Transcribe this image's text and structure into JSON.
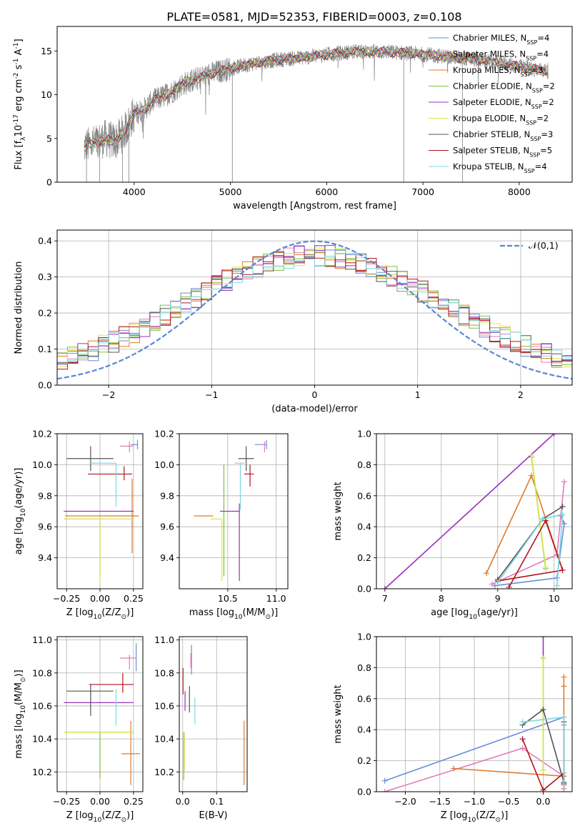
{
  "figure": {
    "title": "PLATE=0581, MJD=52353, FIBERID=0003, z=0.108"
  },
  "series_colors": {
    "Chabrier MILES": "#6a8fd8",
    "Salpeter MILES": "#e07db6",
    "Kroupa MILES": "#e07a2a",
    "Chabrier ELODIE": "#7fbf3f",
    "Salpeter ELODIE": "#9b2fbf",
    "Kroupa ELODIE": "#d8e84c",
    "Chabrier STELIB": "#555555",
    "Salpeter STELIB": "#b3141e",
    "Kroupa STELIB": "#7ad8e0"
  },
  "chart_data": [
    {
      "id": "spectrum",
      "type": "line",
      "title": "PLATE=0581, MJD=52353, FIBERID=0003, z=0.108",
      "xlabel": "wavelength [Angstrom, rest frame]",
      "ylabel": "Flux [f$_\\lambda$10$^{-17}$ erg cm$^{-2}$ s$^{-1}$ A$^{-1}$]",
      "xlim": [
        3200,
        8550
      ],
      "ylim": [
        0,
        17.8
      ],
      "xticks": [
        4000,
        5000,
        6000,
        7000,
        8000
      ],
      "yticks": [
        0,
        5,
        10,
        15
      ],
      "grid": false,
      "legend_position": "top-right",
      "legend": [
        {
          "label": "Chabrier MILES, N$_{SSP}$=4",
          "color": "#6a8fd8"
        },
        {
          "label": "Salpeter MILES, N$_{SSP}$=4",
          "color": "#e07db6"
        },
        {
          "label": "Kroupa MILES, N$_{SSP}$=3",
          "color": "#e07a2a"
        },
        {
          "label": "Chabrier ELODIE, N$_{SSP}$=2",
          "color": "#7fbf3f"
        },
        {
          "label": "Salpeter ELODIE, N$_{SSP}$=2",
          "color": "#9b2fbf"
        },
        {
          "label": "Kroupa ELODIE, N$_{SSP}$=2",
          "color": "#d8e84c"
        },
        {
          "label": "Chabrier STELIB, N$_{SSP}$=3",
          "color": "#555555"
        },
        {
          "label": "Salpeter STELIB, N$_{SSP}$=5",
          "color": "#b3141e"
        },
        {
          "label": "Kroupa STELIB, N$_{SSP}$=4",
          "color": "#7ad8e0"
        }
      ],
      "observed_color": "#808080",
      "continuum": {
        "x": [
          3480,
          3600,
          3700,
          3800,
          3900,
          4000,
          4100,
          4200,
          4300,
          4400,
          4500,
          4600,
          4800,
          5000,
          5200,
          5500,
          5800,
          6000,
          6300,
          6600,
          6900,
          7200,
          7500,
          7800,
          8100,
          8300
        ],
        "y": [
          4.0,
          4.5,
          5.0,
          4.6,
          5.8,
          7.8,
          8.3,
          9.3,
          9.8,
          10.4,
          11.2,
          11.6,
          12.4,
          13.0,
          13.5,
          14.0,
          14.3,
          14.6,
          14.9,
          14.9,
          14.7,
          14.4,
          14.1,
          13.6,
          13.0,
          12.7
        ]
      },
      "drop_lines_x": [
        3505,
        3640,
        3880,
        3945,
        5020,
        6800,
        7410
      ]
    },
    {
      "id": "residuals",
      "type": "histogram",
      "xlabel": "(data-model)/error",
      "ylabel": "Normed distribution",
      "xlim": [
        -2.5,
        2.5
      ],
      "ylim": [
        0,
        0.43
      ],
      "xticks": [
        -2,
        -1,
        0,
        1,
        2
      ],
      "yticks": [
        0.0,
        0.1,
        0.2,
        0.3,
        0.4
      ],
      "grid": true,
      "legend_position": "top-right",
      "reference_curve": {
        "label": "$\\mathcal{N}(0,1)$",
        "color": "#5b86d6",
        "mean": 0,
        "sigma": 1,
        "style": "dashed"
      },
      "bin_width": 0.1,
      "bin_left_edges_from": -2.5
    },
    {
      "id": "age-vs-Z",
      "type": "scatter",
      "xlabel": "Z [log$_{10}$(Z/Z$_\\odot$)]",
      "ylabel": "age  [log$_{10}$(age/yr)]",
      "xlim": [
        -0.32,
        0.32
      ],
      "ylim": [
        9.2,
        10.2
      ],
      "xticks": [
        -0.25,
        0.0,
        0.25
      ],
      "yticks": [
        9.4,
        9.6,
        9.8,
        10.0,
        10.2
      ],
      "grid": true,
      "points": [
        {
          "series": "Chabrier MILES",
          "x": 0.28,
          "y": 10.13,
          "xerr": [
            0.05,
            0.0
          ],
          "yerr": [
            0.03,
            0.03
          ]
        },
        {
          "series": "Salpeter MILES",
          "x": 0.22,
          "y": 10.12,
          "xerr": [
            0.07,
            0.03
          ],
          "yerr": [
            0.04,
            0.03
          ]
        },
        {
          "series": "Kroupa MILES",
          "x": 0.24,
          "y": 9.67,
          "xerr": [
            0.5,
            0.05
          ],
          "yerr": [
            0.24,
            0.24
          ]
        },
        {
          "series": "Chabrier ELODIE",
          "x": 0.0,
          "y": 9.65,
          "xerr": [
            0.27,
            0.0
          ],
          "yerr": [
            0.37,
            0.0
          ]
        },
        {
          "series": "Salpeter ELODIE",
          "x": 0.0,
          "y": 9.7,
          "xerr": [
            0.27,
            0.25
          ],
          "yerr": [
            0.0,
            0.0
          ]
        },
        {
          "series": "Kroupa ELODIE",
          "x": 0.0,
          "y": 9.65,
          "xerr": [
            0.27,
            0.25
          ],
          "yerr": [
            0.4,
            0.0
          ]
        },
        {
          "series": "Chabrier STELIB",
          "x": -0.07,
          "y": 10.04,
          "xerr": [
            0.18,
            0.17
          ],
          "yerr": [
            0.08,
            0.08
          ]
        },
        {
          "series": "Salpeter STELIB",
          "x": 0.18,
          "y": 9.94,
          "xerr": [
            0.27,
            0.06
          ],
          "yerr": [
            0.04,
            0.05
          ]
        },
        {
          "series": "Kroupa STELIB",
          "x": 0.12,
          "y": 10.01,
          "xerr": [
            0.2,
            0.0
          ],
          "yerr": [
            0.28,
            0.0
          ]
        }
      ]
    },
    {
      "id": "age-vs-mass",
      "type": "scatter",
      "xlabel": "mass [log$_{10}$(M/M$_\\odot$)]",
      "ylabel": "",
      "xlim": [
        10.0,
        11.12
      ],
      "ylim": [
        9.2,
        10.2
      ],
      "xticks": [
        10.5,
        11.0
      ],
      "yticks": [
        9.4,
        9.6,
        9.8,
        10.0,
        10.2
      ],
      "grid": true,
      "points": [
        {
          "series": "Chabrier MILES",
          "x": 10.9,
          "y": 10.13,
          "xerr": [
            0.12,
            0.0
          ],
          "yerr": [
            0.03,
            0.03
          ]
        },
        {
          "series": "Salpeter MILES",
          "x": 10.88,
          "y": 10.12,
          "xerr": [
            0.0,
            0.0
          ],
          "yerr": [
            0.04,
            0.03
          ]
        },
        {
          "series": "Kroupa MILES",
          "x": 10.35,
          "y": 9.67,
          "xerr": [
            0.2,
            0.0
          ],
          "yerr": [
            0.0,
            0.0
          ]
        },
        {
          "series": "Chabrier ELODIE",
          "x": 10.46,
          "y": 9.65,
          "xerr": [
            0.0,
            0.0
          ],
          "yerr": [
            0.37,
            0.35
          ]
        },
        {
          "series": "Salpeter ELODIE",
          "x": 10.62,
          "y": 9.7,
          "xerr": [
            0.2,
            0.0
          ],
          "yerr": [
            0.45,
            0.05
          ]
        },
        {
          "series": "Kroupa ELODIE",
          "x": 10.44,
          "y": 9.65,
          "xerr": [
            0.12,
            0.0
          ],
          "yerr": [
            0.4,
            0.0
          ]
        },
        {
          "series": "Chabrier STELIB",
          "x": 10.69,
          "y": 10.04,
          "xerr": [
            0.08,
            0.08
          ],
          "yerr": [
            0.08,
            0.08
          ]
        },
        {
          "series": "Salpeter STELIB",
          "x": 10.73,
          "y": 9.94,
          "xerr": [
            0.06,
            0.04
          ],
          "yerr": [
            0.08,
            0.06
          ]
        },
        {
          "series": "Kroupa STELIB",
          "x": 10.63,
          "y": 10.01,
          "xerr": [
            0.06,
            0.04
          ],
          "yerr": [
            0.3,
            0.0
          ]
        }
      ]
    },
    {
      "id": "weight-vs-age",
      "type": "line",
      "xlabel": "age  [log$_{10}$(age/yr)]",
      "ylabel": "mass weight",
      "xlim": [
        6.85,
        10.32
      ],
      "ylim": [
        0,
        1.0
      ],
      "xticks": [
        7,
        8,
        9,
        10
      ],
      "yticks": [
        0.0,
        0.2,
        0.4,
        0.6,
        0.8,
        1.0
      ],
      "grid": true,
      "series": [
        {
          "name": "Chabrier MILES",
          "x": [
            8.95,
            10.05,
            10.18,
            10.12
          ],
          "y": [
            0.02,
            0.07,
            0.42,
            0.47
          ]
        },
        {
          "name": "Salpeter MILES",
          "x": [
            8.9,
            10.05,
            10.18,
            10.12
          ],
          "y": [
            0.03,
            0.22,
            0.69,
            0.47
          ]
        },
        {
          "name": "Kroupa MILES",
          "x": [
            8.8,
            9.6,
            10.15
          ],
          "y": [
            0.1,
            0.73,
            0.12
          ]
        },
        {
          "name": "Chabrier ELODIE",
          "x": [
            9.6,
            9.85
          ],
          "y": [
            0.85,
            0.13
          ]
        },
        {
          "name": "Salpeter ELODIE",
          "x": [
            7.0,
            10.0
          ],
          "y": [
            0.0,
            1.0
          ]
        },
        {
          "name": "Kroupa ELODIE",
          "x": [
            9.6,
            9.85
          ],
          "y": [
            0.86,
            0.14
          ]
        },
        {
          "name": "Chabrier STELIB",
          "x": [
            9.0,
            9.8,
            10.15
          ],
          "y": [
            0.06,
            0.45,
            0.53
          ]
        },
        {
          "name": "Salpeter STELIB",
          "x": [
            9.2,
            9.85,
            10.15,
            9.0
          ],
          "y": [
            0.01,
            0.44,
            0.12,
            0.05
          ]
        },
        {
          "name": "Kroupa STELIB",
          "x": [
            9.0,
            9.8,
            10.15,
            10.05
          ],
          "y": [
            0.04,
            0.45,
            0.48,
            0.02
          ]
        }
      ]
    },
    {
      "id": "mass-vs-Z",
      "type": "scatter",
      "xlabel": "Z [log$_{10}$(Z/Z$_\\odot$)]",
      "ylabel": "mass [log$_{10}$(M/M$_\\odot$)]",
      "xlim": [
        -0.32,
        0.32
      ],
      "ylim": [
        10.08,
        11.02
      ],
      "xticks": [
        -0.25,
        0.0,
        0.25
      ],
      "yticks": [
        10.2,
        10.4,
        10.6,
        10.8,
        11.0
      ],
      "grid": true,
      "points": [
        {
          "series": "Chabrier MILES",
          "x": 0.27,
          "y": 10.89,
          "xerr": [
            0.0,
            0.0
          ],
          "yerr": [
            0.08,
            0.09
          ]
        },
        {
          "series": "Salpeter MILES",
          "x": 0.22,
          "y": 10.89,
          "xerr": [
            0.07,
            0.05
          ],
          "yerr": [
            0.07,
            0.02
          ]
        },
        {
          "series": "Kroupa MILES",
          "x": 0.23,
          "y": 10.31,
          "xerr": [
            0.07,
            0.07
          ],
          "yerr": [
            0.19,
            0.2
          ]
        },
        {
          "series": "Chabrier ELODIE",
          "x": 0.0,
          "y": 10.44,
          "xerr": [
            0.27,
            0.25
          ],
          "yerr": [
            0.28,
            0.0
          ]
        },
        {
          "series": "Salpeter ELODIE",
          "x": 0.0,
          "y": 10.62,
          "xerr": [
            0.27,
            0.25
          ],
          "yerr": [
            0.0,
            0.0
          ]
        },
        {
          "series": "Kroupa ELODIE",
          "x": 0.0,
          "y": 10.44,
          "xerr": [
            0.27,
            0.25
          ],
          "yerr": [
            0.0,
            0.0
          ]
        },
        {
          "series": "Chabrier STELIB",
          "x": -0.07,
          "y": 10.69,
          "xerr": [
            0.18,
            0.17
          ],
          "yerr": [
            0.15,
            0.04
          ]
        },
        {
          "series": "Salpeter STELIB",
          "x": 0.17,
          "y": 10.73,
          "xerr": [
            0.25,
            0.08
          ],
          "yerr": [
            0.05,
            0.07
          ]
        },
        {
          "series": "Kroupa STELIB",
          "x": 0.12,
          "y": 10.63,
          "xerr": [
            0.0,
            0.0
          ],
          "yerr": [
            0.15,
            0.07
          ]
        }
      ]
    },
    {
      "id": "mass-vs-ebv",
      "type": "scatter",
      "xlabel": "E(B-V)",
      "ylabel": "",
      "xlim": [
        -0.01,
        0.19
      ],
      "ylim": [
        10.08,
        11.02
      ],
      "xticks": [
        0.0,
        0.1
      ],
      "yticks": [
        10.2,
        10.4,
        10.6,
        10.8,
        11.0
      ],
      "grid": true,
      "points": [
        {
          "series": "Chabrier MILES",
          "x": 0.026,
          "y": 10.87,
          "xerr": [
            0,
            0
          ],
          "yerr": [
            0.08,
            0.1
          ]
        },
        {
          "series": "Salpeter MILES",
          "x": 0.024,
          "y": 10.9,
          "xerr": [
            0,
            0
          ],
          "yerr": [
            0.07,
            0.02
          ]
        },
        {
          "series": "Kroupa MILES",
          "x": 0.181,
          "y": 10.31,
          "xerr": [
            0,
            0
          ],
          "yerr": [
            0.19,
            0.2
          ]
        },
        {
          "series": "Chabrier ELODIE",
          "x": 0.003,
          "y": 10.44,
          "xerr": [
            0,
            0
          ],
          "yerr": [
            0.29,
            0.0
          ]
        },
        {
          "series": "Salpeter ELODIE",
          "x": 0.007,
          "y": 10.62,
          "xerr": [
            0,
            0
          ],
          "yerr": [
            0.05,
            0.07
          ]
        },
        {
          "series": "Kroupa ELODIE",
          "x": 0.005,
          "y": 10.44,
          "xerr": [
            0,
            0
          ],
          "yerr": [
            0.24,
            0.0
          ]
        },
        {
          "series": "Chabrier STELIB",
          "x": 0.02,
          "y": 10.66,
          "xerr": [
            0,
            0
          ],
          "yerr": [
            0.1,
            0.06
          ]
        },
        {
          "series": "Salpeter STELIB",
          "x": 0.001,
          "y": 10.73,
          "xerr": [
            0,
            0
          ],
          "yerr": [
            0.06,
            0.1
          ]
        },
        {
          "series": "Kroupa STELIB",
          "x": 0.036,
          "y": 10.56,
          "xerr": [
            0,
            0
          ],
          "yerr": [
            0.07,
            0.09
          ]
        }
      ]
    },
    {
      "id": "weight-vs-Z",
      "type": "line",
      "xlabel": "Z [log$_{10}$(Z/Z$_\\odot$)]",
      "ylabel": "mass weight",
      "xlim": [
        -2.42,
        0.42
      ],
      "ylim": [
        0,
        1.0
      ],
      "xticks": [
        -2.0,
        -1.5,
        -1.0,
        -0.5,
        0.0
      ],
      "yticks": [
        0.0,
        0.2,
        0.4,
        0.6,
        0.8,
        1.0
      ],
      "grid": true,
      "series": [
        {
          "name": "Chabrier MILES",
          "x": [
            -2.3,
            0.3,
            0.3,
            0.3
          ],
          "y": [
            0.07,
            0.48,
            0.43,
            0.02
          ]
        },
        {
          "name": "Salpeter MILES",
          "x": [
            -2.3,
            -0.3,
            0.3,
            0.3
          ],
          "y": [
            0.0,
            0.28,
            0.1,
            0.02
          ]
        },
        {
          "name": "Kroupa MILES",
          "x": [
            -1.3,
            0.3,
            0.3,
            0.3
          ],
          "y": [
            0.15,
            0.1,
            0.74,
            0.68
          ]
        },
        {
          "name": "Chabrier ELODIE",
          "x": [
            0.0,
            0.0
          ],
          "y": [
            0.86,
            0.14
          ]
        },
        {
          "name": "Salpeter ELODIE",
          "x": [
            0.0,
            0.0
          ],
          "y": [
            1.0,
            0.86
          ]
        },
        {
          "name": "Kroupa ELODIE",
          "x": [
            0.0,
            0.0
          ],
          "y": [
            0.86,
            0.14
          ]
        },
        {
          "name": "Chabrier STELIB",
          "x": [
            -0.3,
            0.0,
            0.3,
            0.3
          ],
          "y": [
            0.43,
            0.53,
            0.06,
            0.45
          ]
        },
        {
          "name": "Salpeter STELIB",
          "x": [
            -0.3,
            0.0,
            0.3,
            0.3
          ],
          "y": [
            0.34,
            0.01,
            0.12,
            0.05
          ]
        },
        {
          "name": "Kroupa STELIB",
          "x": [
            -0.3,
            0.3,
            0.3,
            0.3
          ],
          "y": [
            0.45,
            0.48,
            0.04,
            0.12
          ]
        }
      ]
    }
  ]
}
